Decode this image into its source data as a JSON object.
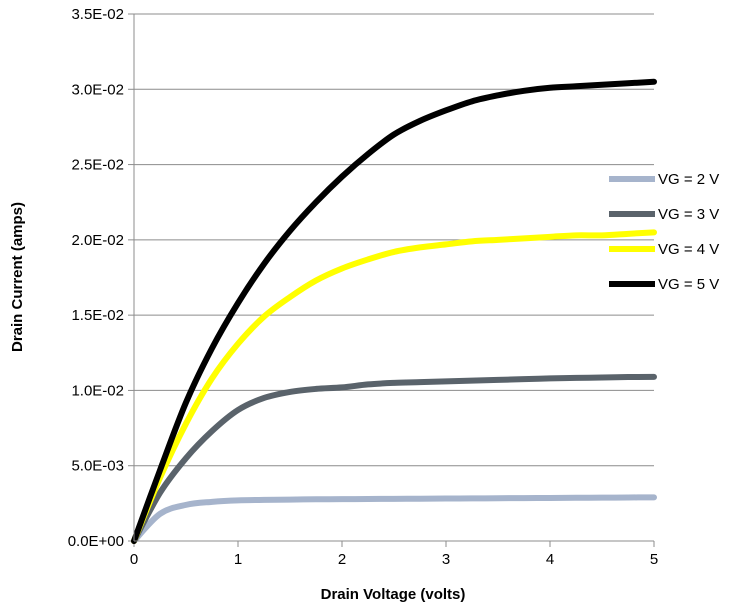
{
  "chart_data": {
    "type": "line",
    "xlabel": "Drain Voltage (volts)",
    "ylabel": "Drain Current (amps)",
    "xlim": [
      0,
      5
    ],
    "ylim": [
      0,
      0.035
    ],
    "x_ticks": [
      "0",
      "1",
      "2",
      "3",
      "4",
      "5"
    ],
    "y_ticks": [
      "0.0E+00",
      "5.0E-03",
      "1.0E-02",
      "1.5E-02",
      "2.0E-02",
      "2.5E-02",
      "3.0E-02",
      "3.5E-02"
    ],
    "grid": "horizontal",
    "legend_position": "right",
    "x": [
      0,
      0.25,
      0.5,
      0.75,
      1,
      1.25,
      1.5,
      1.75,
      2,
      2.25,
      2.5,
      2.75,
      3,
      3.25,
      3.5,
      3.75,
      4,
      4.25,
      4.5,
      4.75,
      5
    ],
    "series": [
      {
        "name": "VG = 2 V",
        "color": "#a6b4cc",
        "values": [
          0,
          0.0018,
          0.0024,
          0.0026,
          0.0027,
          0.00273,
          0.00275,
          0.00277,
          0.00278,
          0.00279,
          0.0028,
          0.00281,
          0.00282,
          0.00283,
          0.00284,
          0.00285,
          0.00286,
          0.00287,
          0.00288,
          0.00289,
          0.0029
        ]
      },
      {
        "name": "VG = 3 V",
        "color": "#5a636b",
        "values": [
          0,
          0.0032,
          0.0055,
          0.0073,
          0.0087,
          0.0095,
          0.0099,
          0.0101,
          0.0102,
          0.0104,
          0.0105,
          0.01055,
          0.0106,
          0.01065,
          0.0107,
          0.01075,
          0.0108,
          0.01083,
          0.01086,
          0.01089,
          0.0109
        ]
      },
      {
        "name": "VG = 4 V",
        "color": "#ffff00",
        "values": [
          0,
          0.0042,
          0.0078,
          0.0108,
          0.0131,
          0.0149,
          0.0162,
          0.0173,
          0.0181,
          0.0187,
          0.0192,
          0.0195,
          0.0197,
          0.0199,
          0.02,
          0.0201,
          0.0202,
          0.0203,
          0.0203,
          0.0204,
          0.0205
        ]
      },
      {
        "name": "VG = 5 V",
        "color": "#000000",
        "values": [
          0,
          0.0047,
          0.0092,
          0.0128,
          0.0158,
          0.0184,
          0.0206,
          0.0225,
          0.0242,
          0.0257,
          0.027,
          0.0279,
          0.0286,
          0.0292,
          0.0296,
          0.0299,
          0.0301,
          0.0302,
          0.0303,
          0.0304,
          0.0305
        ]
      }
    ]
  }
}
